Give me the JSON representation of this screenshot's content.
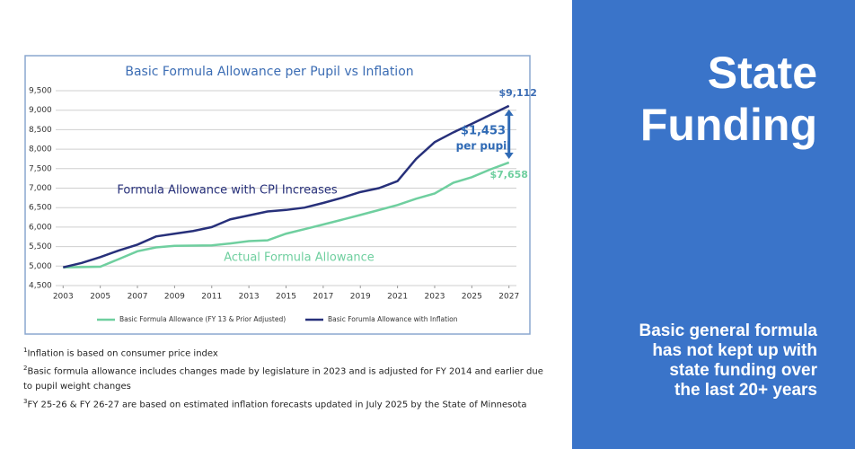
{
  "chart_data": {
    "type": "line",
    "title": "Basic Formula Allowance per Pupil vs Inflation",
    "x": [
      2003,
      2004,
      2005,
      2006,
      2007,
      2008,
      2009,
      2010,
      2011,
      2012,
      2013,
      2014,
      2015,
      2016,
      2017,
      2018,
      2019,
      2020,
      2021,
      2022,
      2023,
      2024,
      2025,
      2026,
      2027
    ],
    "xlim": [
      2002.6,
      2027.4
    ],
    "xticks": [
      2003,
      2005,
      2007,
      2009,
      2011,
      2013,
      2015,
      2017,
      2019,
      2021,
      2023,
      2025,
      2027
    ],
    "ylim": [
      4500,
      9500
    ],
    "yticks": [
      {
        "value": 4500,
        "label": "4,500"
      },
      {
        "value": 5000,
        "label": "5,000"
      },
      {
        "value": 5500,
        "label": "5,500"
      },
      {
        "value": 6000,
        "label": "6,000"
      },
      {
        "value": 6500,
        "label": "6,500"
      },
      {
        "value": 7000,
        "label": "7,000"
      },
      {
        "value": 7500,
        "label": "7,500"
      },
      {
        "value": 8000,
        "label": "8,000"
      },
      {
        "value": 8500,
        "label": "8,500"
      },
      {
        "value": 9000,
        "label": "9,000"
      },
      {
        "value": 9500,
        "label": "9,500"
      }
    ],
    "grid": true,
    "legend": "bottom",
    "series": [
      {
        "name": "Basic Formula Allowance (FY 13 & Prior Adjusted)",
        "color": "#6fcf9f",
        "values": [
          4968,
          4975,
          4983,
          5180,
          5380,
          5480,
          5520,
          5525,
          5530,
          5580,
          5640,
          5660,
          5831,
          5948,
          6067,
          6188,
          6312,
          6438,
          6567,
          6728,
          6863,
          7138,
          7281,
          7481,
          7658
        ],
        "value_labels": [
          null,
          null,
          null,
          null,
          null,
          null,
          null,
          null,
          null,
          null,
          null,
          null,
          null,
          null,
          null,
          null,
          null,
          null,
          null,
          null,
          null,
          null,
          null,
          null,
          "$7,658"
        ]
      },
      {
        "name": "Basic Forumla Allowance with Inflation",
        "color": "#27307a",
        "values": [
          4968,
          5080,
          5230,
          5400,
          5550,
          5760,
          5830,
          5900,
          6000,
          6200,
          6300,
          6400,
          6440,
          6500,
          6620,
          6750,
          6900,
          7000,
          7180,
          7750,
          8180,
          8430,
          8650,
          8880,
          9112
        ],
        "value_labels": [
          null,
          null,
          null,
          null,
          null,
          null,
          null,
          null,
          null,
          null,
          null,
          null,
          null,
          null,
          null,
          null,
          null,
          null,
          null,
          null,
          null,
          null,
          null,
          null,
          "$9,112"
        ]
      }
    ],
    "annotations": [
      "Formula Allowance with CPI Increases",
      "Actual Formula Allowance",
      "$1,453",
      "per pupil"
    ]
  },
  "footnotes": [
    {
      "marker": "1",
      "text": "Inflation is based on consumer price index"
    },
    {
      "marker": "2",
      "text": "Basic formula allowance includes changes made by legislature in 2023 and is adjusted for FY 2014 and earlier due to pupil weight changes"
    },
    {
      "marker": "3",
      "text": "FY 25-26 & FY 26-27 are based on estimated inflation forecasts updated in July 2025 by the State of Minnesota"
    }
  ],
  "panel": {
    "title_lines": [
      "State",
      "Funding"
    ],
    "subtitle_lines": [
      "Basic general formula",
      "has not kept up with",
      "state funding over",
      "the last 20+ years"
    ]
  }
}
